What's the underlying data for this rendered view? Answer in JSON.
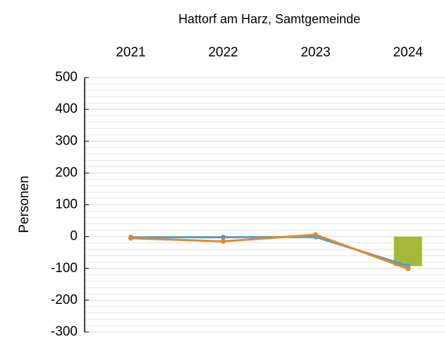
{
  "chart_data": {
    "type": "line",
    "title": "Hattorf am Harz, Samtgemeinde",
    "y_label": "Personen",
    "categories": [
      "2021",
      "2022",
      "2023",
      "2024"
    ],
    "series": [
      {
        "type": "bar",
        "color": "#a5b83a",
        "values": [
          null,
          null,
          null,
          -93
        ]
      },
      {
        "type": "line",
        "color": "#5b9bc3",
        "values": [
          -2,
          -2,
          -1,
          -92
        ]
      },
      {
        "type": "line",
        "color": "#de8a2f",
        "values": [
          -5,
          -15,
          6,
          -101
        ]
      }
    ],
    "ylim": [
      -300,
      500
    ],
    "yticks": [
      -300,
      -200,
      -100,
      0,
      100,
      200,
      300,
      400,
      500
    ],
    "minor_yticks": [
      -280,
      -260,
      -240,
      -220,
      -180,
      -160,
      -140,
      -120,
      -80,
      -60,
      -40,
      -20,
      20,
      40,
      60,
      80,
      120,
      140,
      160,
      180,
      220,
      240,
      260,
      280,
      320,
      340,
      360,
      380,
      420,
      440,
      460,
      480
    ],
    "grid": true
  }
}
